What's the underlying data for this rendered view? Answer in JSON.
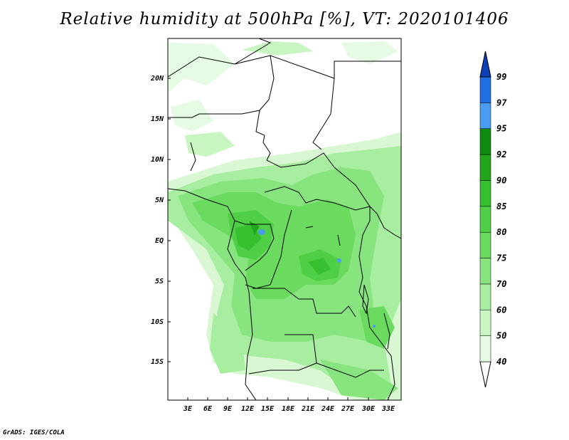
{
  "title": "Relative humidity at 500hPa [%], VT: 2020101406",
  "footer": "GrADS: IGES/COLA",
  "lat_ticks": [
    "20N",
    "15N",
    "10N",
    "5N",
    "EQ",
    "5S",
    "10S",
    "15S"
  ],
  "lon_ticks": [
    "3E",
    "6E",
    "9E",
    "12E",
    "15E",
    "18E",
    "21E",
    "24E",
    "27E",
    "30E",
    "33E"
  ],
  "colorbar": {
    "levels": [
      "40",
      "50",
      "60",
      "70",
      "75",
      "80",
      "85",
      "90",
      "92",
      "95",
      "97",
      "99"
    ],
    "colors": [
      "#ffffff",
      "#e6fbe3",
      "#c9f5c2",
      "#a8eea0",
      "#88e47f",
      "#6adb5f",
      "#4fcf45",
      "#36c030",
      "#21a61e",
      "#0f8c0f",
      "#4a9cf0",
      "#1e6fe0",
      "#0d3fb8"
    ]
  },
  "map": {
    "region": "Central Africa",
    "lon_range": [
      0,
      34
    ],
    "lat_range": [
      -20,
      24
    ],
    "variable": "Relative humidity",
    "level": "500hPa",
    "units": "%",
    "valid_time": "2020101406"
  }
}
